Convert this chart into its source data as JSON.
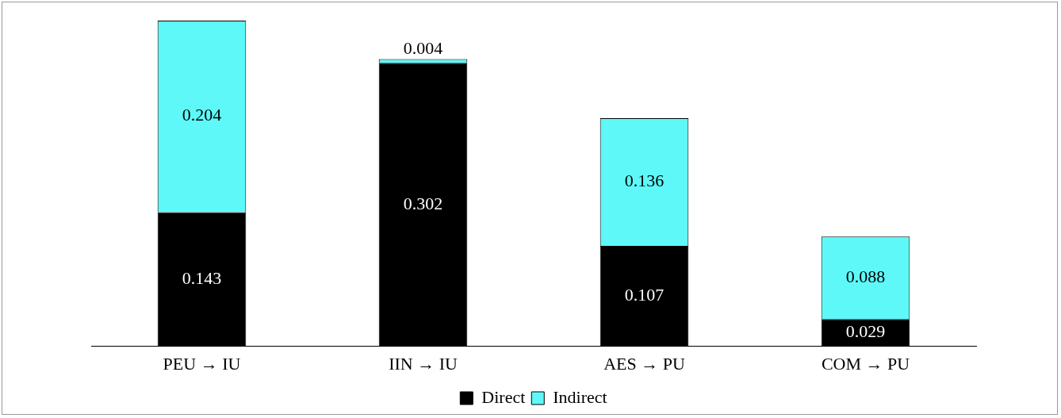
{
  "chart_data": {
    "type": "bar",
    "stacked": true,
    "categories": [
      "PEU → IU",
      "IIN → IU",
      "AES → PU",
      "COM → PU"
    ],
    "series": [
      {
        "name": "Direct",
        "color": "#000000",
        "values": [
          0.143,
          0.302,
          0.107,
          0.029
        ]
      },
      {
        "name": "Indirect",
        "color": "#5ef8f8",
        "values": [
          0.204,
          0.004,
          0.136,
          0.088
        ]
      }
    ],
    "data_labels": true,
    "grid": false,
    "legend": "bottom",
    "tick_labels": "x"
  }
}
